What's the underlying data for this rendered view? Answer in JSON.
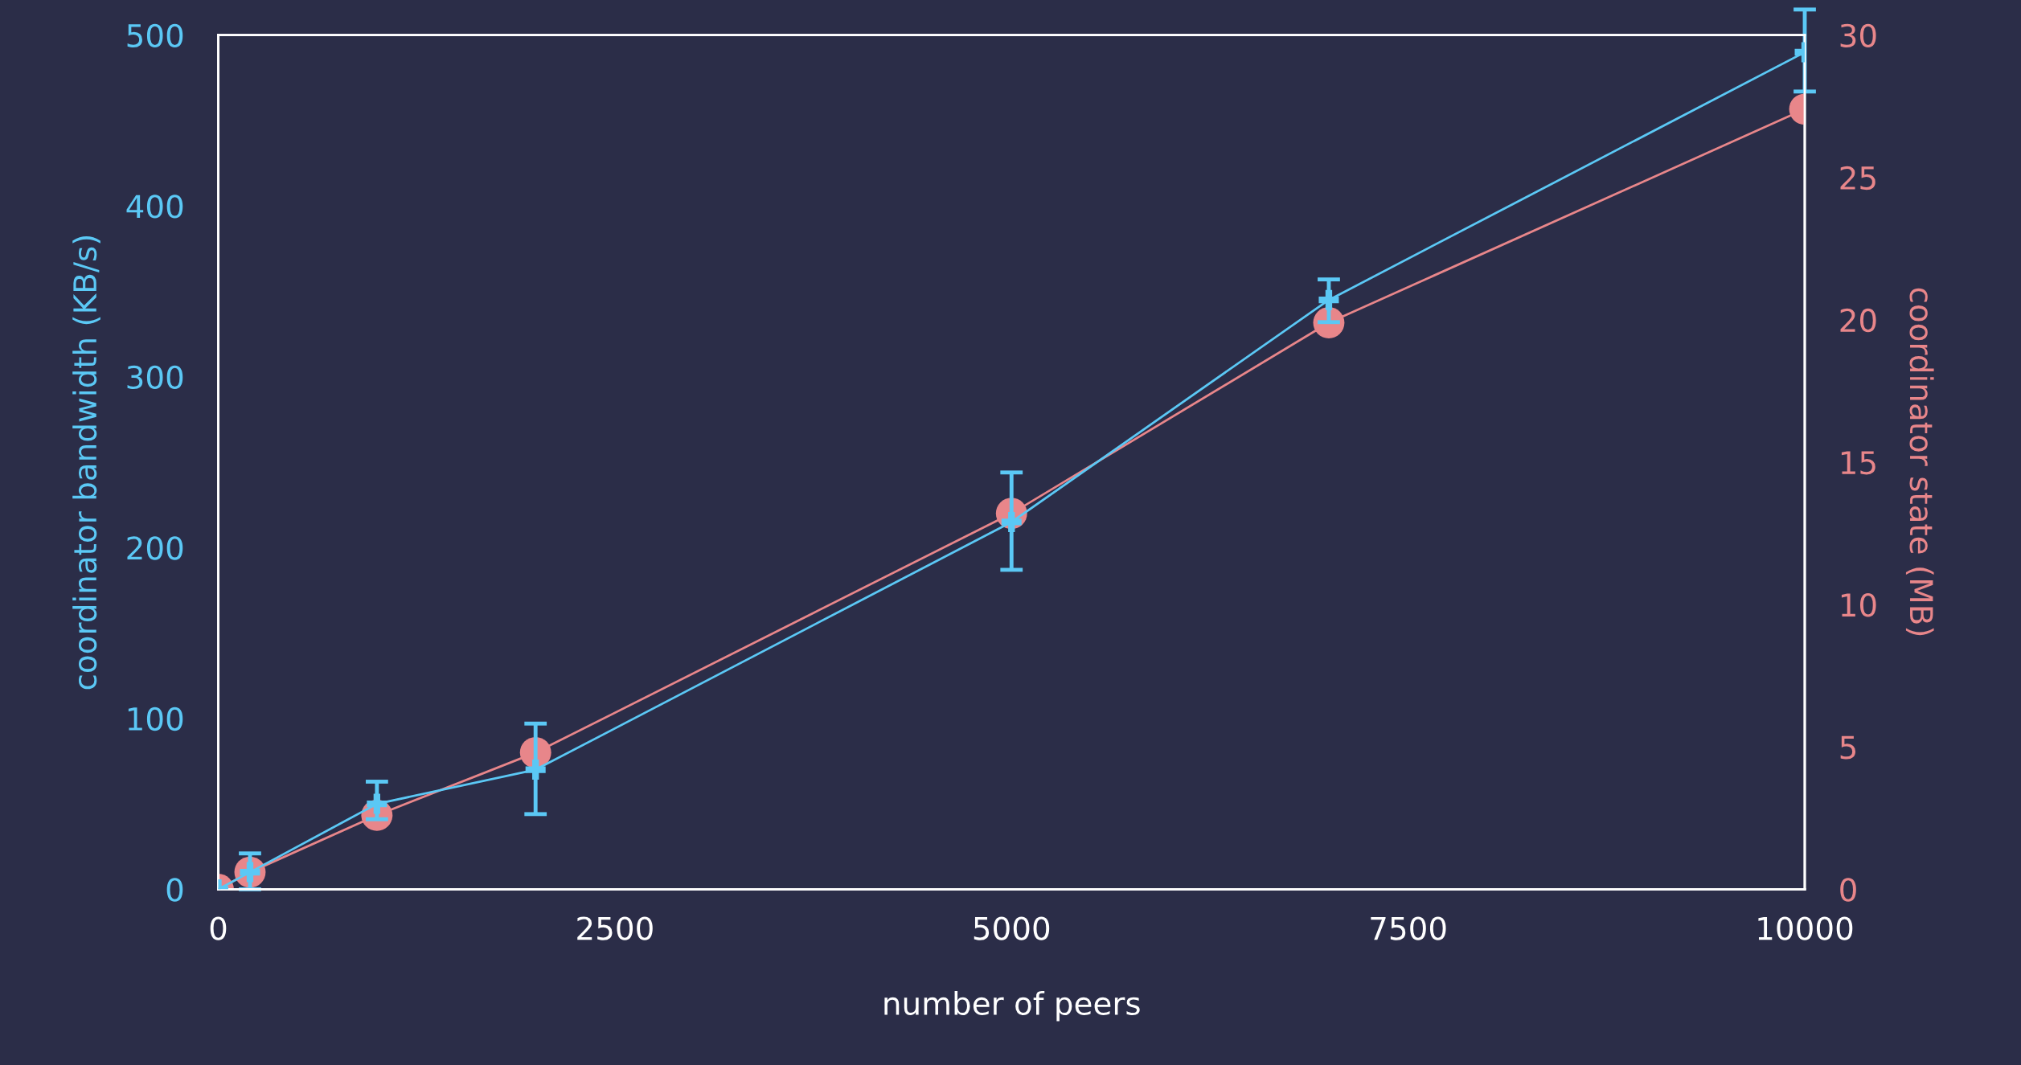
{
  "chart_data": {
    "type": "line",
    "xlabel": "number of peers",
    "ylabel": "coordinator bandwidth (KB/s)",
    "y2label": "coordinator state (MB)",
    "x": [
      0,
      200,
      1000,
      2000,
      5000,
      7000,
      10000
    ],
    "xlim": [
      0,
      10000
    ],
    "xticks": [
      0,
      2500,
      5000,
      7500,
      10000
    ],
    "ylim": [
      0,
      500
    ],
    "yticks": [
      0,
      100,
      200,
      300,
      400,
      500
    ],
    "y2lim": [
      0,
      30
    ],
    "y2ticks": [
      0,
      5,
      10,
      15,
      20,
      25,
      30
    ],
    "grid": false,
    "series": [
      {
        "color": "#5bc8f5",
        "marker": "cross",
        "values": [
          0,
          10,
          50,
          70,
          215,
          345,
          490
        ],
        "errors": [
          null,
          [
            0,
            21
          ],
          [
            41,
            63
          ],
          [
            44,
            97
          ],
          [
            187,
            244
          ],
          [
            332,
            357
          ],
          [
            467,
            515
          ]
        ]
      },
      {
        "color": "#e8868a",
        "marker": "circle",
        "axis": "y2",
        "values": [
          0,
          0.6,
          2.6,
          4.8,
          13.2,
          19.9,
          27.4
        ]
      }
    ]
  }
}
